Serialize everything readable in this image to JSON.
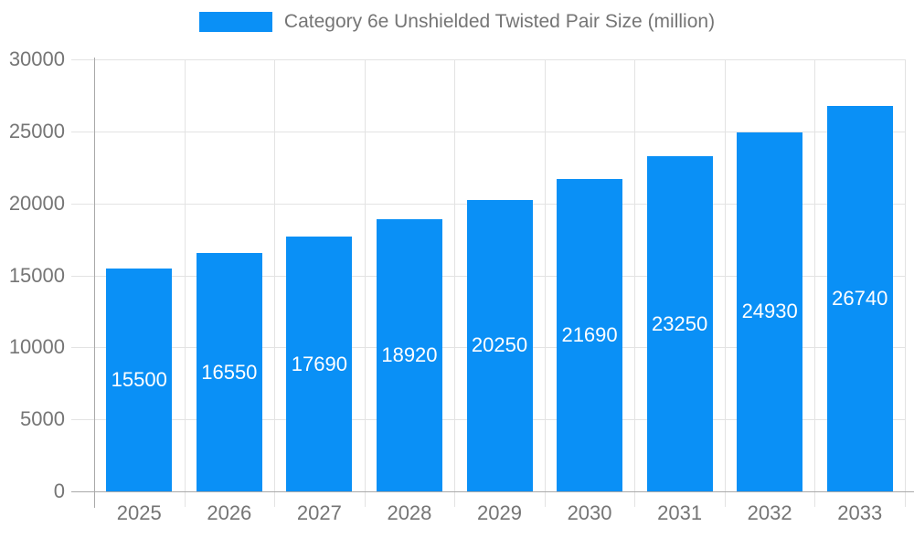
{
  "legend": {
    "label": "Category 6e Unshielded Twisted Pair Size (million)"
  },
  "colors": {
    "bar": "#0a90f6",
    "grid": "#e3e3e3",
    "axis": "#a9a9a9",
    "axis_text": "#757575",
    "value_text": "#ffffff",
    "background": "#ffffff"
  },
  "chart_data": {
    "type": "bar",
    "title": "Category 6e Unshielded Twisted Pair Size (million)",
    "series_name": "Category 6e Unshielded Twisted Pair Size (million)",
    "categories": [
      "2025",
      "2026",
      "2027",
      "2028",
      "2029",
      "2030",
      "2031",
      "2032",
      "2033"
    ],
    "values": [
      15500,
      16550,
      17690,
      18920,
      20250,
      21690,
      23250,
      24930,
      26740
    ],
    "xlabel": "",
    "ylabel": "",
    "ylim": [
      0,
      30000
    ],
    "yticks": [
      0,
      5000,
      10000,
      15000,
      20000,
      25000,
      30000
    ],
    "grid": true,
    "gridlines": "horizontal-and-vertical-boundaries",
    "value_labels": "inside-center-white",
    "legend_position": "top-center"
  }
}
